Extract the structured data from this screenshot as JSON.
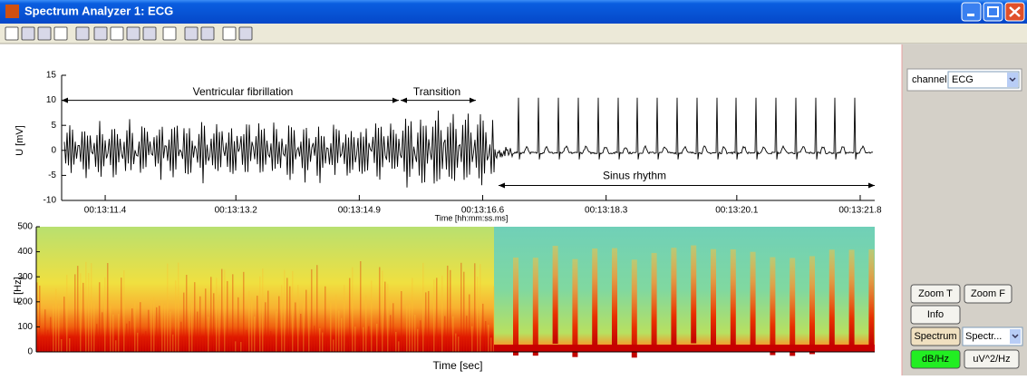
{
  "window": {
    "title": "Spectrum Analyzer 1: ECG"
  },
  "chart_data": [
    {
      "type": "line",
      "ylabel": "U [mV]",
      "xlabel": "Time [hh:mm:ss.ms]",
      "xlim": [
        790.8,
        802.0
      ],
      "xticks": [
        {
          "value": 791.4,
          "label": "00:13:11.4"
        },
        {
          "value": 793.2,
          "label": "00:13:13.2"
        },
        {
          "value": 794.9,
          "label": "00:13:14.9"
        },
        {
          "value": 796.6,
          "label": "00:13:16.6"
        },
        {
          "value": 798.3,
          "label": "00:13:18.3"
        },
        {
          "value": 800.1,
          "label": "00:13:20.1"
        },
        {
          "value": 801.8,
          "label": "00:13:21.8"
        }
      ],
      "ylim": [
        -10,
        15
      ],
      "yticks": [
        -10,
        -5,
        0,
        5,
        10,
        15
      ],
      "annotations": [
        "Ventricular fibrillation",
        "Transition",
        "Sinus rhythm"
      ]
    },
    {
      "type": "spectrogram",
      "ylabel": "F [Hz]",
      "xlabel": "Time [sec]",
      "ylim": [
        0,
        500
      ],
      "yticks": [
        0,
        100,
        200,
        300,
        400,
        500
      ]
    }
  ],
  "panel": {
    "channel_label": "channel",
    "channel_value": "ECG",
    "buttons": [
      "Zoom T",
      "Zoom F",
      "Info",
      "Spectrum"
    ],
    "mode_value": "Spectr...",
    "units": [
      "dB/Hz",
      "uV^2/Hz"
    ]
  }
}
